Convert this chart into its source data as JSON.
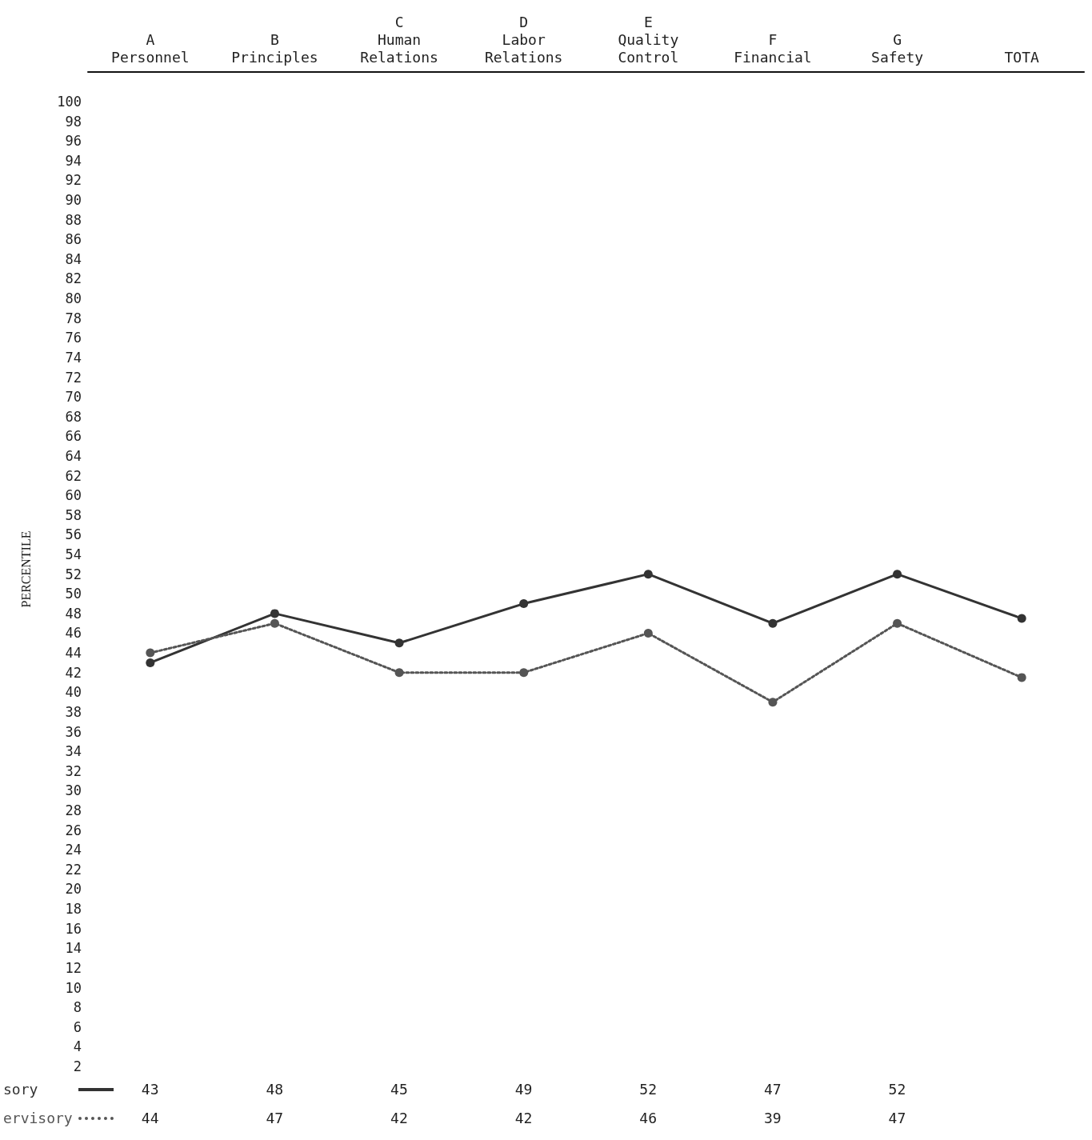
{
  "chart_data": {
    "type": "line",
    "ylabel": "PERCENTILE",
    "categories": [
      "A\nPersonnel",
      "B\nPrinciples",
      "C\nHuman\nRelations",
      "D\nLabor\nRelations",
      "E\nQuality\nControl",
      "F\nFinancial",
      "G\nSafety",
      "TOTA"
    ],
    "series": [
      {
        "name": "sory",
        "color": "#333333",
        "line_style": "solid",
        "values": [
          43,
          48,
          45,
          49,
          52,
          47,
          52,
          47.5
        ],
        "value_labels": [
          "43",
          "48",
          "45",
          "49",
          "52",
          "47",
          "52",
          null
        ]
      },
      {
        "name": "ervisory",
        "color": "#555555",
        "line_style": "dotted",
        "values": [
          44,
          47,
          42,
          42,
          46,
          39,
          47,
          41.5
        ],
        "value_labels": [
          "44",
          "47",
          "42",
          "42",
          "46",
          "39",
          "47",
          null
        ]
      }
    ],
    "ylim": [
      2,
      103
    ],
    "yticks": [
      2,
      4,
      6,
      8,
      10,
      12,
      14,
      16,
      18,
      20,
      22,
      24,
      26,
      28,
      30,
      32,
      34,
      36,
      38,
      40,
      42,
      44,
      46,
      48,
      50,
      52,
      54,
      56,
      58,
      60,
      62,
      64,
      66,
      68,
      70,
      72,
      74,
      76,
      78,
      80,
      82,
      84,
      86,
      88,
      90,
      92,
      94,
      96,
      98,
      100
    ],
    "grid": false,
    "legend": "bottom left",
    "marker": "circle"
  }
}
